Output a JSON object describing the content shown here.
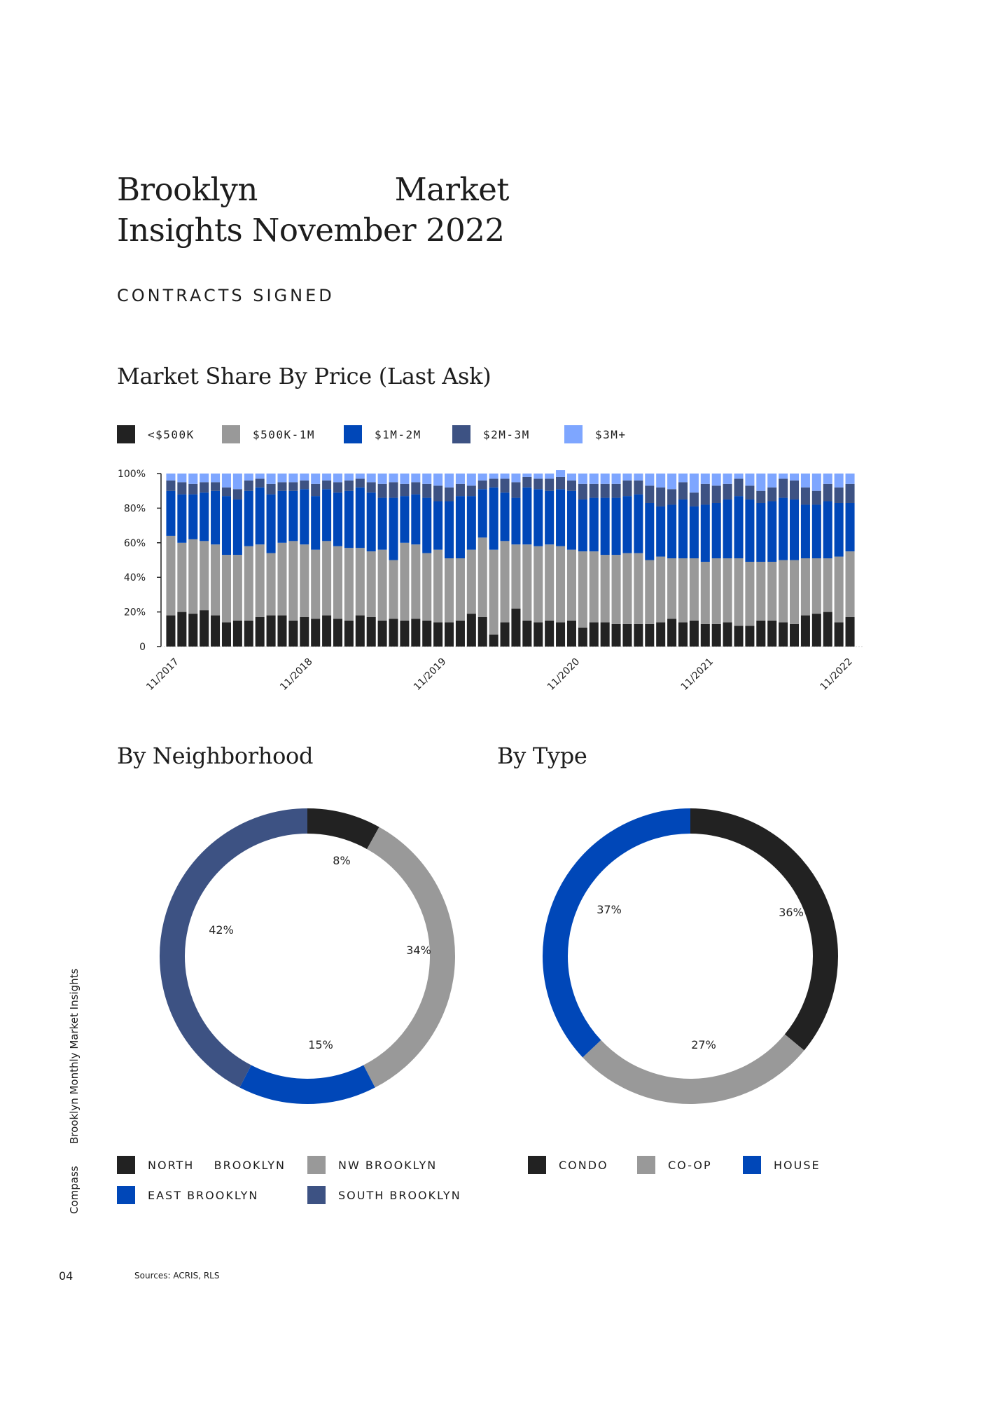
{
  "page": {
    "title_line1_a": "Brooklyn",
    "title_line1_b": "Market",
    "title_line2": "Insights November 2022",
    "section_label": "CONTRACTS SIGNED",
    "side_brand": "Compass",
    "side_publication": "Brooklyn Monthly Market Insights",
    "page_number": "04",
    "sources": "Sources: ACRIS, RLS"
  },
  "colors": {
    "black": "#222222",
    "gray": "#999999",
    "blue": "#0047b8",
    "navy": "#3d5283",
    "lightblue": "#7ea6ff"
  },
  "chart_data": [
    {
      "type": "bar",
      "stacked": true,
      "title": "Market Share By Price (Last Ask)",
      "yticks": [
        "0",
        "20%",
        "40%",
        "60%",
        "80%",
        "100%"
      ],
      "ylim": [
        0,
        100
      ],
      "xtick_labels": [
        "11/2017",
        "11/2018",
        "11/2019",
        "11/2020",
        "11/2021",
        "11/2022"
      ],
      "legend": [
        "<$500K",
        "$500K-1M",
        "$1M-2M",
        "$2M-3M",
        "$3M+"
      ],
      "series": [
        {
          "name": "<$500K",
          "color_key": "black",
          "values": [
            18,
            20,
            19,
            21,
            18,
            14,
            15,
            15,
            17,
            18,
            18,
            15,
            17,
            16,
            18,
            16,
            15,
            18,
            17,
            15,
            16,
            15,
            16,
            15,
            14,
            14,
            15,
            19,
            17,
            7,
            14,
            22,
            15,
            14,
            15,
            14,
            15,
            11,
            14,
            14,
            13,
            13,
            13,
            13,
            14,
            16,
            14,
            15,
            13,
            13,
            14,
            12,
            12,
            15,
            15,
            14,
            13,
            18,
            19,
            20,
            14,
            17
          ]
        },
        {
          "name": "$500K-1M",
          "color_key": "gray",
          "values": [
            46,
            40,
            43,
            40,
            41,
            39,
            38,
            43,
            42,
            36,
            42,
            46,
            42,
            40,
            43,
            42,
            42,
            39,
            38,
            41,
            34,
            45,
            43,
            39,
            42,
            37,
            36,
            37,
            46,
            49,
            47,
            37,
            44,
            44,
            44,
            44,
            41,
            44,
            41,
            39,
            40,
            41,
            41,
            37,
            38,
            35,
            37,
            36,
            36,
            38,
            37,
            39,
            37,
            34,
            34,
            36,
            37,
            33,
            32,
            31,
            38,
            38
          ]
        },
        {
          "name": "$1M-2M",
          "color_key": "blue",
          "values": [
            26,
            28,
            26,
            28,
            31,
            34,
            32,
            32,
            33,
            34,
            30,
            29,
            32,
            31,
            30,
            31,
            33,
            35,
            34,
            30,
            36,
            27,
            29,
            32,
            28,
            33,
            36,
            31,
            28,
            36,
            28,
            27,
            33,
            33,
            31,
            33,
            34,
            30,
            31,
            33,
            33,
            33,
            34,
            33,
            29,
            31,
            34,
            30,
            33,
            32,
            34,
            36,
            36,
            34,
            35,
            36,
            35,
            31,
            31,
            33,
            31,
            28
          ]
        },
        {
          "name": "$2M-3M",
          "color_key": "navy",
          "values": [
            6,
            7,
            6,
            6,
            5,
            5,
            6,
            6,
            5,
            6,
            5,
            5,
            5,
            7,
            5,
            6,
            6,
            5,
            6,
            8,
            9,
            7,
            7,
            8,
            9,
            8,
            7,
            6,
            5,
            5,
            8,
            9,
            6,
            6,
            7,
            7,
            6,
            9,
            8,
            8,
            8,
            9,
            8,
            10,
            11,
            9,
            10,
            8,
            12,
            10,
            9,
            10,
            8,
            7,
            8,
            11,
            11,
            10,
            8,
            10,
            9,
            11
          ]
        },
        {
          "name": "$3M+",
          "color_key": "lightblue",
          "values": [
            4,
            5,
            6,
            5,
            5,
            8,
            9,
            4,
            3,
            6,
            5,
            5,
            4,
            6,
            4,
            5,
            4,
            3,
            5,
            6,
            5,
            6,
            5,
            6,
            7,
            8,
            6,
            7,
            4,
            3,
            3,
            5,
            2,
            3,
            3,
            4,
            4,
            6,
            6,
            6,
            6,
            4,
            4,
            7,
            8,
            9,
            5,
            11,
            6,
            7,
            6,
            3,
            7,
            10,
            8,
            3,
            4,
            8,
            10,
            6,
            8,
            6
          ]
        }
      ]
    },
    {
      "type": "pie",
      "donut": true,
      "title": "By Neighborhood",
      "legend": [
        "NORTH    BROOKLYN",
        "NW BROOKLYN",
        "EAST BROOKLYN",
        "SOUTH BROOKLYN"
      ],
      "slices": [
        {
          "label": "NORTH    BROOKLYN",
          "value": 8,
          "text": "8%",
          "color_key": "black"
        },
        {
          "label": "NW BROOKLYN",
          "value": 34,
          "text": "34%",
          "color_key": "gray"
        },
        {
          "label": "EAST BROOKLYN",
          "value": 15,
          "text": "15%",
          "color_key": "blue"
        },
        {
          "label": "SOUTH BROOKLYN",
          "value": 42,
          "text": "42%",
          "color_key": "navy"
        }
      ]
    },
    {
      "type": "pie",
      "donut": true,
      "title": "By Type",
      "legend": [
        "CONDO",
        "CO-OP",
        "HOUSE"
      ],
      "slices": [
        {
          "label": "CONDO",
          "value": 36,
          "text": "36%",
          "color_key": "black"
        },
        {
          "label": "CO-OP",
          "value": 27,
          "text": "27%",
          "color_key": "gray"
        },
        {
          "label": "HOUSE",
          "value": 37,
          "text": "37%",
          "color_key": "blue"
        }
      ]
    }
  ]
}
